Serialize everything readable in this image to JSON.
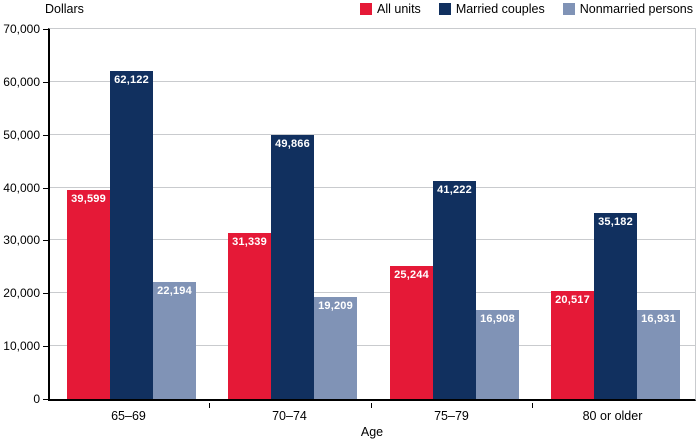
{
  "header": {
    "units_label": "Dollars"
  },
  "legend": [
    {
      "label": "All units",
      "color": "#e51937"
    },
    {
      "label": "Married couples",
      "color": "#11305f"
    },
    {
      "label": "Nonmarried persons",
      "color": "#8093b6"
    }
  ],
  "chart_data": {
    "type": "bar",
    "title": "",
    "xlabel": "Age",
    "ylabel": "Dollars",
    "categories": [
      "65–69",
      "70–74",
      "75–79",
      "80 or older"
    ],
    "series": [
      {
        "name": "All units",
        "color": "#e51937",
        "values": [
          39599,
          31339,
          25244,
          20517
        ],
        "labels": [
          "39,599",
          "31,339",
          "25,244",
          "20,517"
        ]
      },
      {
        "name": "Married couples",
        "color": "#11305f",
        "values": [
          62122,
          49866,
          41222,
          35182
        ],
        "labels": [
          "62,122",
          "49,866",
          "41,222",
          "35,182"
        ]
      },
      {
        "name": "Nonmarried persons",
        "color": "#8093b6",
        "values": [
          22194,
          19209,
          16908,
          16931
        ],
        "labels": [
          "22,194",
          "19,209",
          "16,908",
          "16,931"
        ]
      }
    ],
    "ylim": [
      0,
      70000
    ],
    "ytick_step": 10000,
    "ytick_values": [
      0,
      10000,
      20000,
      30000,
      40000,
      50000,
      60000,
      70000
    ],
    "ytick_labels": [
      "0",
      "10,000",
      "20,000",
      "30,000",
      "40,000",
      "50,000",
      "60,000",
      "70,000"
    ],
    "grid": true,
    "grid_color": "#c9cbce",
    "legend_position": "top-right",
    "value_labels": "inside-top-white-bold"
  }
}
